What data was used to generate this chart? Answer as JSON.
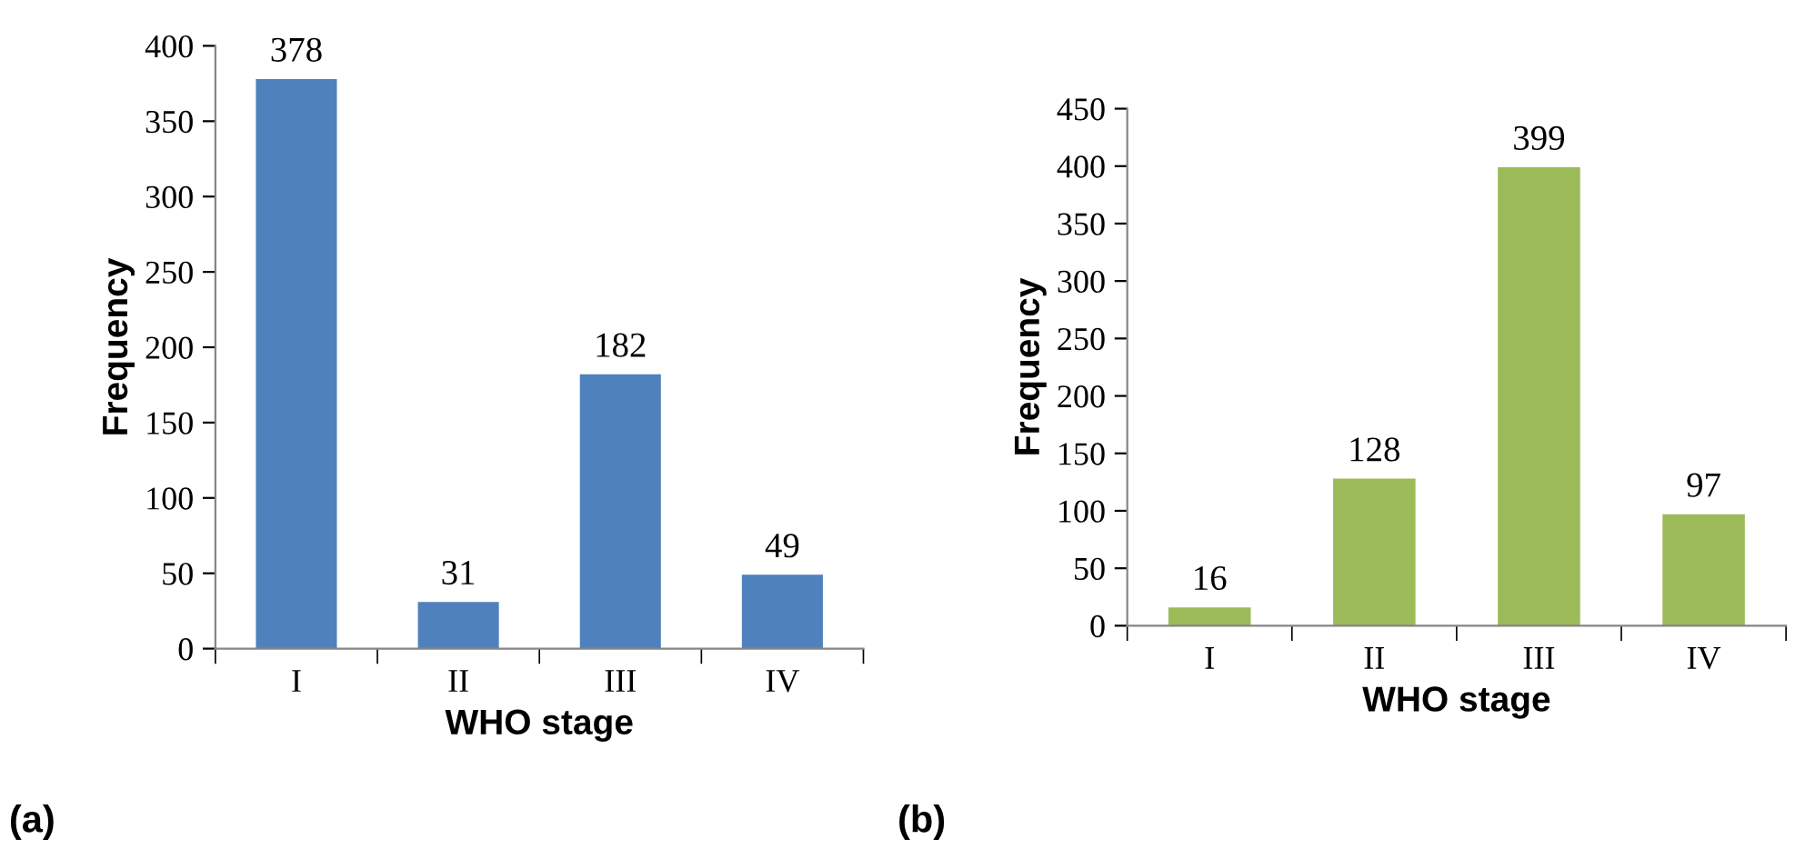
{
  "chart_data": [
    {
      "type": "bar",
      "categories": [
        "I",
        "II",
        "III",
        "IV"
      ],
      "values": [
        378,
        31,
        182,
        49
      ],
      "color": "#4f81bd",
      "ylim": [
        0,
        400
      ],
      "yticks": [
        0,
        50,
        100,
        150,
        200,
        250,
        300,
        350,
        400
      ],
      "xlabel": "WHO stage",
      "ylabel": "Frequency",
      "data_labels": true,
      "grid": false,
      "legend": false,
      "annotations": [
        "(a)"
      ]
    },
    {
      "type": "bar",
      "categories": [
        "I",
        "II",
        "III",
        "IV"
      ],
      "values": [
        16,
        128,
        399,
        97
      ],
      "color": "#9bbb59",
      "ylim": [
        0,
        450
      ],
      "yticks": [
        0,
        50,
        100,
        150,
        200,
        250,
        300,
        350,
        400,
        450
      ],
      "xlabel": "WHO stage",
      "ylabel": "Frequency",
      "data_labels": true,
      "grid": false,
      "legend": false,
      "annotations": [
        "(b)"
      ]
    }
  ]
}
